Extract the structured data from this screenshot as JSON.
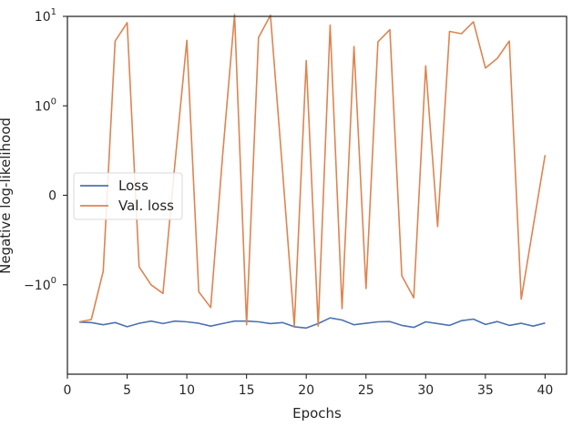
{
  "chart_data": {
    "type": "line",
    "xlabel": "Epochs",
    "ylabel": "Negative log-likelihood",
    "xlim": [
      0,
      41.8
    ],
    "yscale": "symlog",
    "ylim": [
      -10,
      10
    ],
    "x_ticks": [
      0,
      5,
      10,
      15,
      20,
      25,
      30,
      35,
      40
    ],
    "y_ticks": [
      {
        "value": 10,
        "base": "10",
        "exp": "1",
        "text": ""
      },
      {
        "value": 1,
        "base": "10",
        "exp": "0",
        "text": ""
      },
      {
        "value": 0,
        "base": "",
        "exp": "",
        "text": "0"
      },
      {
        "value": -1,
        "base": "−10",
        "exp": "0",
        "text": ""
      }
    ],
    "grid": false,
    "legend_position": "center-left",
    "x": [
      1,
      2,
      3,
      4,
      5,
      6,
      7,
      8,
      9,
      10,
      11,
      12,
      13,
      14,
      15,
      16,
      17,
      18,
      19,
      20,
      21,
      22,
      23,
      24,
      25,
      26,
      27,
      28,
      29,
      30,
      31,
      32,
      33,
      34,
      35,
      36,
      37,
      38,
      39,
      40
    ],
    "series": [
      {
        "name": "Loss",
        "color": "#4c72b0",
        "values": [
          -2.62,
          -2.65,
          -2.8,
          -2.65,
          -2.95,
          -2.7,
          -2.55,
          -2.72,
          -2.55,
          -2.6,
          -2.7,
          -2.9,
          -2.72,
          -2.55,
          -2.55,
          -2.6,
          -2.72,
          -2.65,
          -2.95,
          -3.05,
          -2.72,
          -2.35,
          -2.48,
          -2.8,
          -2.7,
          -2.6,
          -2.58,
          -2.85,
          -3.0,
          -2.6,
          -2.72,
          -2.85,
          -2.52,
          -2.42,
          -2.78,
          -2.58,
          -2.85,
          -2.7,
          -2.9,
          -2.68
        ]
      },
      {
        "name": "Val. loss",
        "color": "#dd8452",
        "values": [
          -2.6,
          -2.45,
          -0.85,
          5.3,
          8.5,
          -0.8,
          -1.0,
          -1.25,
          0.35,
          5.4,
          -1.2,
          -1.8,
          0.45,
          10.5,
          -2.8,
          5.8,
          10.3,
          0.3,
          -2.9,
          3.2,
          -2.9,
          8.0,
          -1.85,
          4.6,
          -1.1,
          5.2,
          7.1,
          -0.9,
          -1.4,
          2.8,
          -0.35,
          6.8,
          6.4,
          8.7,
          2.65,
          3.4,
          5.3,
          -1.45,
          -0.35,
          0.45
        ]
      }
    ]
  }
}
